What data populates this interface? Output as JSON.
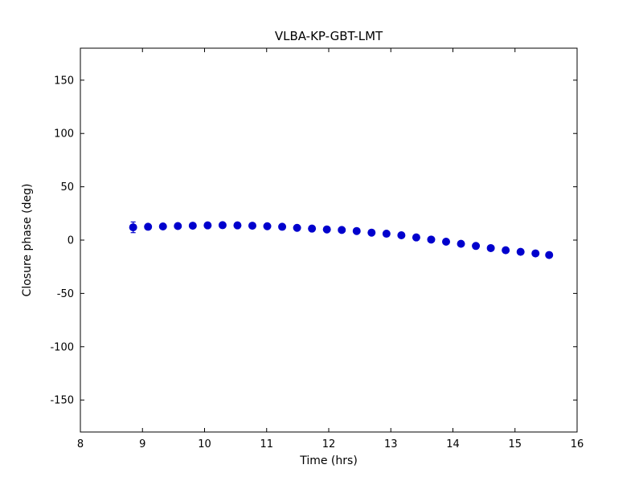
{
  "chart_data": {
    "type": "scatter",
    "title": "VLBA-KP-GBT-LMT",
    "xlabel": "Time (hrs)",
    "ylabel": "Closure phase (deg)",
    "xlim": [
      8,
      16
    ],
    "ylim": [
      -180,
      180
    ],
    "xticks": [
      8,
      9,
      10,
      11,
      12,
      13,
      14,
      15,
      16
    ],
    "yticks": [
      -150,
      -100,
      -50,
      0,
      50,
      100,
      150
    ],
    "grid": false,
    "legend": "none",
    "marker_color": "#0000cd",
    "frame_color": "#000000",
    "series": [
      {
        "name": "closure phase",
        "x": [
          8.85,
          9.09,
          9.33,
          9.57,
          9.81,
          10.05,
          10.29,
          10.53,
          10.77,
          11.01,
          11.25,
          11.49,
          11.73,
          11.97,
          12.21,
          12.45,
          12.69,
          12.93,
          13.17,
          13.41,
          13.65,
          13.89,
          14.13,
          14.37,
          14.61,
          14.85,
          15.09,
          15.33,
          15.55
        ],
        "y": [
          12.0,
          12.5,
          12.8,
          13.2,
          13.5,
          13.8,
          14.0,
          13.8,
          13.5,
          13.0,
          12.5,
          11.5,
          10.8,
          10.0,
          9.5,
          8.5,
          7.0,
          6.0,
          4.5,
          2.5,
          0.5,
          -1.5,
          -3.5,
          -5.5,
          -7.5,
          -9.5,
          -11.0,
          -12.5,
          -14.0
        ],
        "yerr": [
          5.0,
          1.5,
          1.5,
          1.5,
          1.5,
          1.5,
          1.5,
          1.5,
          1.5,
          1.5,
          1.5,
          1.5,
          1.5,
          1.5,
          1.5,
          1.5,
          1.5,
          1.5,
          1.5,
          1.5,
          1.5,
          1.5,
          1.5,
          1.5,
          1.5,
          1.5,
          1.5,
          1.5,
          1.5
        ]
      }
    ]
  }
}
